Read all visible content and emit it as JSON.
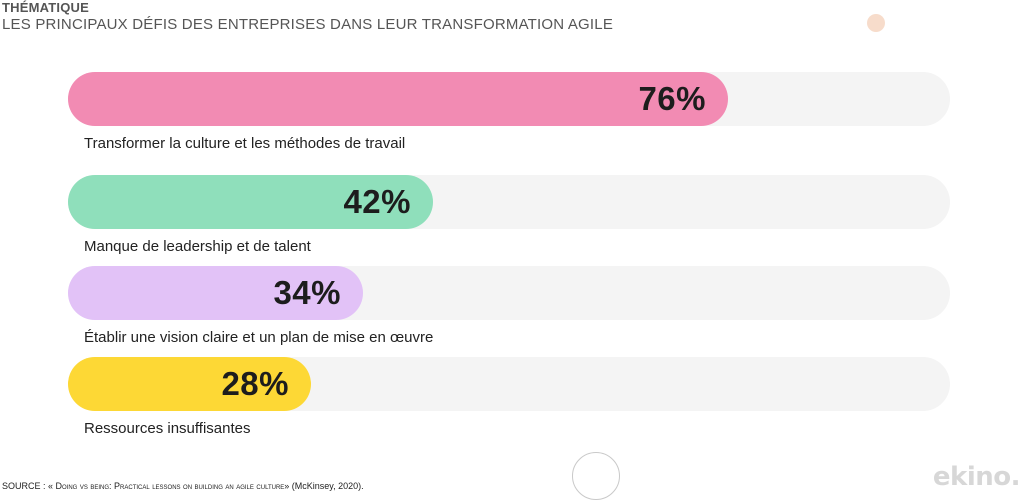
{
  "header": {
    "kicker": "THÉMATIQUE",
    "title": "LES PRINCIPAUX DÉFIS DES ENTREPRISES DANS LEUR TRANSFORMATION AGILE"
  },
  "chart_data": {
    "type": "bar",
    "orientation": "horizontal",
    "categories": [
      "Transformer la culture et les méthodes de travail",
      "Manque de leadership et de talent",
      "Établir une vision claire et un plan de mise en œuvre",
      "Ressources insuffisantes"
    ],
    "values": [
      76,
      42,
      34,
      28
    ],
    "value_labels": [
      "76%",
      "42%",
      "34%",
      "28%"
    ],
    "colors": [
      "#f28bb3",
      "#8fdfbb",
      "#e2c2f7",
      "#fdd835"
    ],
    "track_color": "#f4f4f4",
    "xlim": [
      0,
      100
    ],
    "grid": false,
    "title": "",
    "xlabel": "",
    "ylabel": ""
  },
  "footer": {
    "source_prefix": "SOURCE : « ",
    "source_title": "Doing vs being: Practical lessons on building an agile culture",
    "source_suffix": "» (McKinsey, 2020).",
    "logo": "ekino."
  }
}
